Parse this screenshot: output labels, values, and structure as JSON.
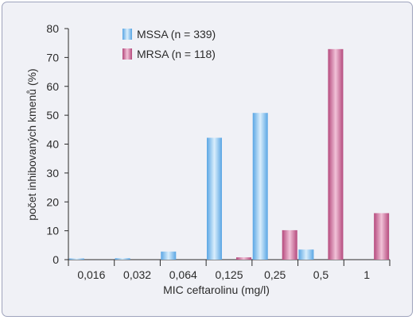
{
  "chart_data": {
    "type": "bar",
    "categories": [
      "0,016",
      "0,032",
      "0,064",
      "0,125",
      "0,25",
      "0,5",
      "1"
    ],
    "series": [
      {
        "name": "MSSA (n = 339)",
        "values": [
          0.4,
          0.5,
          2.8,
          42.2,
          50.8,
          3.5,
          0
        ],
        "color": "#8ecbf2"
      },
      {
        "name": "MRSA (n = 118)",
        "values": [
          0,
          0,
          0,
          0.8,
          10.2,
          72.9,
          16.1
        ],
        "color": "#d67ea6"
      }
    ],
    "yticks": [
      "0",
      "10",
      "20",
      "30",
      "40",
      "50",
      "60",
      "70",
      "80"
    ],
    "xlabel": "MIC ceftarolinu (mg/l)",
    "ylabel": "počet inhibovaných kmenů (%)",
    "ylim": [
      0,
      80
    ],
    "grid": false,
    "legend_position": "top-center"
  }
}
